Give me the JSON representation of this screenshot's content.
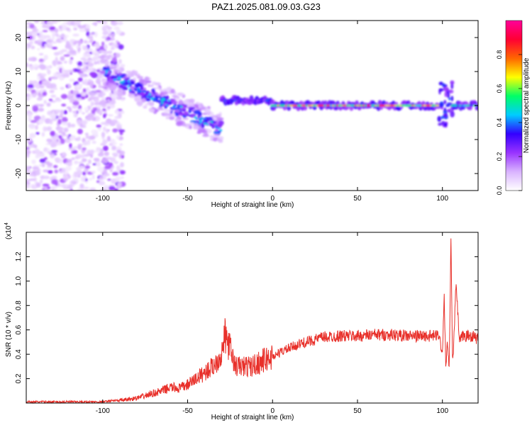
{
  "title": "PAZ1.2025.081.09.03.G23",
  "chart_data": [
    {
      "type": "heatmap",
      "xlabel": "Height of straight line (km)",
      "ylabel": "Frequency (Hz)",
      "xlim": [
        -145,
        121
      ],
      "ylim": [
        -25,
        25
      ],
      "xticks": [
        -100,
        -50,
        0,
        50,
        100
      ],
      "yticks": [
        -20,
        -10,
        0,
        10,
        20
      ],
      "colorbar": {
        "label": "Normalized spectral amplitude",
        "range": [
          0,
          1
        ],
        "ticks": [
          0.0,
          0.2,
          0.4,
          0.6,
          0.8
        ],
        "colors": [
          "#ffffff",
          "#d9b3ff",
          "#9933ff",
          "#3300ff",
          "#00ccff",
          "#00ff66",
          "#ffff00",
          "#ff6600",
          "#ff0033",
          "#ff0099"
        ]
      },
      "features": [
        {
          "x_range": [
            -145,
            -100
          ],
          "freq_range": [
            -25,
            25
          ],
          "amplitude": 0.05
        },
        {
          "x_range": [
            -100,
            -30
          ],
          "freq_center_start": 10,
          "freq_center_end": -7,
          "amplitude": 0.2
        },
        {
          "x_range": [
            -30,
            0
          ],
          "freq_center": 1.5,
          "amplitude": 0.4
        },
        {
          "x_range": [
            0,
            98
          ],
          "freq_center": 0,
          "amplitude": 0.9
        },
        {
          "x_range": [
            98,
            106
          ],
          "freq_range": [
            -6,
            7
          ],
          "amplitude": 0.3
        },
        {
          "x_range": [
            106,
            121
          ],
          "freq_center": 0,
          "amplitude": 0.6
        }
      ]
    },
    {
      "type": "line",
      "xlabel": "Height of straight line (km)",
      "ylabel": "SNR (10 * v/v)",
      "yscale_label": "(x10",
      "yscale_exp": "4",
      "xlim": [
        -145,
        121
      ],
      "ylim": [
        0,
        1.4
      ],
      "xticks": [
        -100,
        -50,
        0,
        50,
        100
      ],
      "yticks": [
        0.2,
        0.4,
        0.6,
        0.8,
        1.0,
        1.2
      ],
      "color": "#e8302a",
      "series": [
        {
          "x": [
            -145,
            -130,
            -120,
            -110,
            -100,
            -95,
            -90,
            -85,
            -80,
            -75,
            -70,
            -65,
            -60,
            -55,
            -50,
            -45,
            -40,
            -35,
            -30,
            -28,
            -25,
            -22,
            -20,
            -18,
            -15,
            -12,
            -10,
            -5,
            0,
            5,
            10,
            15,
            20,
            25,
            30,
            40,
            50,
            60,
            70,
            80,
            90,
            95,
            98,
            100,
            101,
            102,
            103,
            104,
            105,
            106,
            107,
            108,
            110,
            112,
            115,
            118,
            121
          ],
          "y": [
            0.01,
            0.01,
            0.01,
            0.01,
            0.01,
            0.02,
            0.02,
            0.03,
            0.04,
            0.06,
            0.08,
            0.1,
            0.13,
            0.12,
            0.15,
            0.2,
            0.25,
            0.3,
            0.4,
            0.55,
            0.45,
            0.3,
            0.3,
            0.3,
            0.3,
            0.3,
            0.32,
            0.35,
            0.38,
            0.42,
            0.45,
            0.48,
            0.5,
            0.52,
            0.54,
            0.55,
            0.55,
            0.56,
            0.56,
            0.55,
            0.55,
            0.55,
            0.56,
            0.4,
            0.9,
            0.3,
            0.5,
            0.25,
            1.35,
            0.3,
            0.6,
            1.0,
            0.5,
            0.55,
            0.55,
            0.55,
            0.52
          ]
        }
      ]
    }
  ]
}
